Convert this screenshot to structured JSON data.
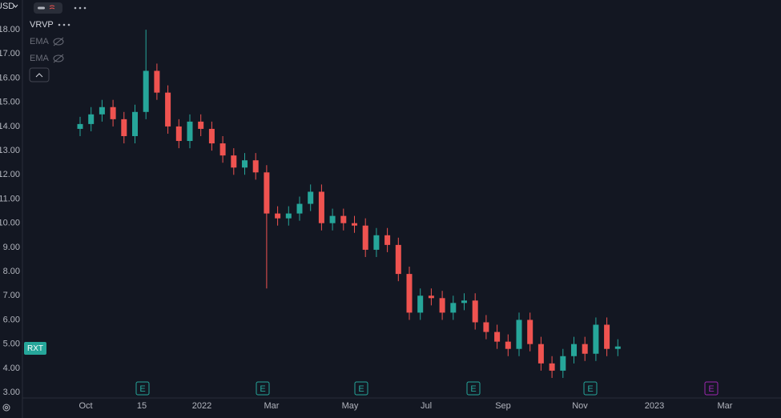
{
  "header": {
    "currency": "USD",
    "indicators": [
      "VRVP",
      "EMA",
      "EMA"
    ],
    "symbol": "RXT",
    "earnings_label": "E"
  },
  "chart_data": {
    "type": "candlestick",
    "open": [
      13.9,
      14.1,
      14.5,
      14.8,
      14.3,
      13.6,
      14.6,
      16.3,
      15.4,
      14.0,
      13.4,
      14.2,
      13.9,
      13.3,
      12.8,
      12.3,
      12.6,
      12.1,
      10.4,
      10.2,
      10.4,
      10.8,
      11.3,
      10.0,
      10.3,
      10.0,
      9.9,
      8.9,
      9.5,
      9.1,
      7.9,
      6.3,
      7.0,
      6.9,
      6.3,
      6.7,
      6.8,
      5.9,
      5.5,
      5.1,
      4.8,
      6.0,
      5.0,
      4.2,
      3.9,
      4.5,
      5.0,
      4.6,
      5.8,
      4.8
    ],
    "high": [
      14.4,
      14.8,
      15.1,
      15.1,
      14.6,
      14.9,
      18.0,
      16.6,
      15.7,
      14.3,
      14.5,
      14.5,
      14.2,
      13.6,
      13.1,
      12.9,
      12.9,
      12.4,
      10.7,
      10.7,
      11.1,
      11.6,
      11.6,
      10.6,
      10.6,
      10.3,
      10.2,
      9.8,
      9.8,
      9.4,
      8.2,
      7.3,
      7.3,
      7.2,
      7.0,
      7.1,
      7.1,
      6.2,
      5.8,
      5.4,
      6.3,
      6.3,
      5.3,
      4.5,
      4.8,
      5.3,
      5.3,
      6.1,
      6.1,
      5.2
    ],
    "low": [
      13.6,
      13.8,
      14.2,
      14.0,
      13.3,
      13.3,
      14.3,
      15.1,
      13.7,
      13.1,
      13.1,
      13.6,
      13.0,
      12.5,
      12.0,
      12.0,
      11.8,
      7.3,
      9.9,
      9.9,
      10.1,
      10.5,
      9.7,
      9.7,
      9.7,
      9.6,
      8.6,
      8.6,
      8.8,
      7.6,
      6.0,
      6.0,
      6.6,
      6.0,
      6.0,
      6.4,
      5.6,
      5.2,
      4.8,
      4.5,
      4.5,
      4.7,
      3.9,
      3.6,
      3.6,
      4.2,
      4.3,
      4.3,
      4.5,
      4.5
    ],
    "close": [
      14.1,
      14.5,
      14.8,
      14.3,
      13.6,
      14.6,
      16.3,
      15.4,
      14.0,
      13.4,
      14.2,
      13.9,
      13.3,
      12.8,
      12.3,
      12.6,
      12.1,
      10.4,
      10.2,
      10.4,
      10.8,
      11.3,
      10.0,
      10.3,
      10.0,
      9.9,
      8.9,
      9.5,
      9.1,
      7.9,
      6.3,
      7.0,
      6.9,
      6.3,
      6.7,
      6.8,
      5.9,
      5.5,
      5.1,
      4.8,
      6.0,
      5.0,
      4.2,
      3.9,
      4.5,
      5.0,
      4.6,
      5.8,
      4.8,
      4.9
    ],
    "up_color": "#26a69a",
    "down_color": "#ef5350",
    "ylim": [
      2.77,
      19.23
    ],
    "yticks": [
      {
        "value": 18,
        "label": "18.00"
      },
      {
        "value": 17,
        "label": "17.00"
      },
      {
        "value": 16,
        "label": "16.00"
      },
      {
        "value": 15,
        "label": "15.00"
      },
      {
        "value": 14,
        "label": "14.00"
      },
      {
        "value": 13,
        "label": "13.00"
      },
      {
        "value": 12,
        "label": "12.00"
      },
      {
        "value": 11,
        "label": "11.00"
      },
      {
        "value": 10,
        "label": "10.00"
      },
      {
        "value": 9,
        "label": "9.00"
      },
      {
        "value": 8,
        "label": "8.00"
      },
      {
        "value": 7,
        "label": "7.00"
      },
      {
        "value": 6,
        "label": "6.00"
      },
      {
        "value": 5,
        "label": "5.00"
      },
      {
        "value": 4,
        "label": "4.00"
      },
      {
        "value": 3,
        "label": "3.00"
      }
    ],
    "xtick_labels": [
      "Oct",
      "15",
      "2022",
      "Mar",
      "May",
      "Jul",
      "Sep",
      "Nov",
      "2023",
      "Mar"
    ]
  }
}
